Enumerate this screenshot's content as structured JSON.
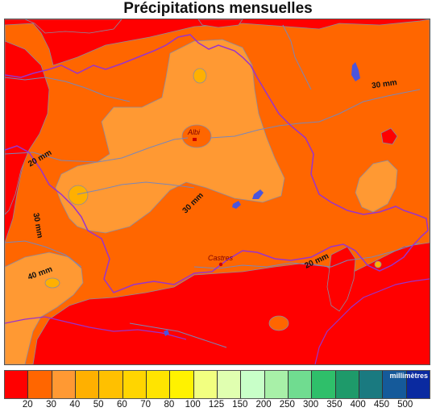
{
  "title": "Précipitations mensuelles",
  "map": {
    "cities": [
      {
        "name": "Albi"
      },
      {
        "name": "Castres"
      }
    ],
    "contour_labels": [
      "30 mm",
      "20 mm",
      "30 mm",
      "30 mm",
      "40 mm",
      "20 mm"
    ],
    "colors": {
      "border": "#9933cc",
      "rivers": "#7a86b8",
      "lakes": "#4a55dd",
      "city_marker": "#cc0000"
    }
  },
  "legend": {
    "unit": "millimètres",
    "classes": [
      {
        "label": "20",
        "color": "#ff0000"
      },
      {
        "label": "30",
        "color": "#ff6600"
      },
      {
        "label": "40",
        "color": "#ff9933"
      },
      {
        "label": "50",
        "color": "#ffb000"
      },
      {
        "label": "60",
        "color": "#ffc000"
      },
      {
        "label": "70",
        "color": "#ffd500"
      },
      {
        "label": "80",
        "color": "#ffe400"
      },
      {
        "label": "100",
        "color": "#fff200"
      },
      {
        "label": "125",
        "color": "#f2ff80"
      },
      {
        "label": "150",
        "color": "#e0ffb0"
      },
      {
        "label": "200",
        "color": "#c8ffc8"
      },
      {
        "label": "250",
        "color": "#a8f0a8"
      },
      {
        "label": "300",
        "color": "#70dc90"
      },
      {
        "label": "350",
        "color": "#2fbf6a"
      },
      {
        "label": "400",
        "color": "#1e9a6a"
      },
      {
        "label": "450",
        "color": "#1a7a80"
      },
      {
        "label": "500",
        "color": "#155a9a"
      },
      {
        "label": "",
        "color": "#0a2aa0"
      }
    ]
  }
}
